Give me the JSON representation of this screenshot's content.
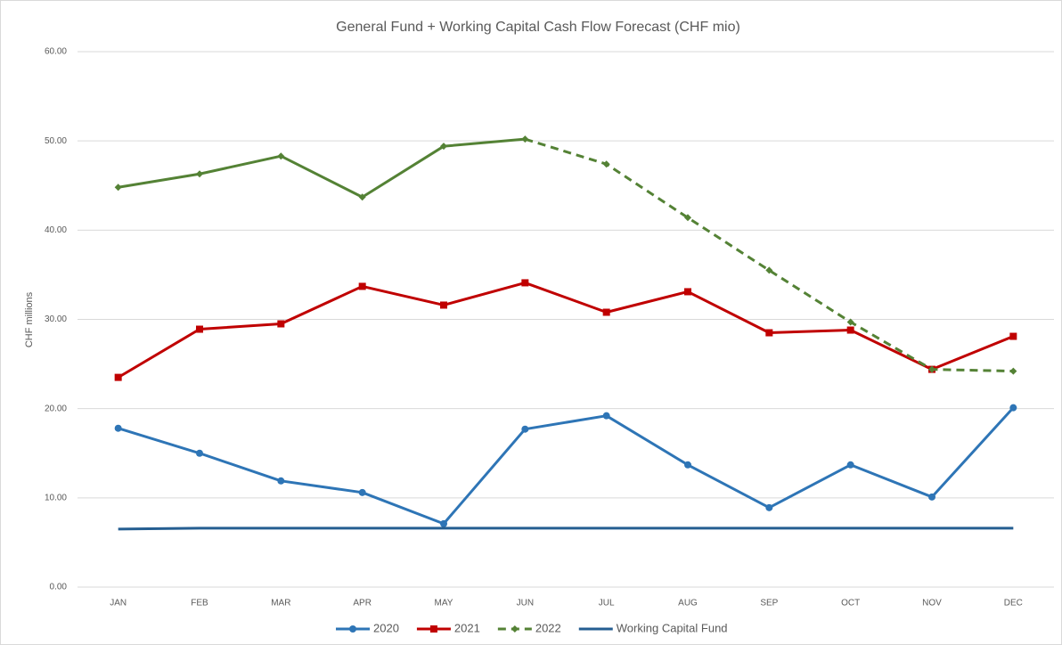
{
  "chart_data": {
    "type": "line",
    "title": "General Fund + Working Capital Cash Flow Forecast (CHF mio)",
    "y_label": "CHF millions",
    "categories": [
      "JAN",
      "FEB",
      "MAR",
      "APR",
      "MAY",
      "JUN",
      "JUL",
      "AUG",
      "SEP",
      "OCT",
      "NOV",
      "DEC"
    ],
    "series": [
      {
        "name": "2020",
        "color": "#2e75b6",
        "marker": "circle",
        "values": [
          17.8,
          15.0,
          11.9,
          10.6,
          7.1,
          17.7,
          19.2,
          13.7,
          8.9,
          13.7,
          10.1,
          20.1
        ]
      },
      {
        "name": "2021",
        "color": "#c00000",
        "marker": "square",
        "values": [
          23.5,
          28.9,
          29.5,
          33.7,
          31.6,
          34.1,
          30.8,
          33.1,
          28.5,
          28.8,
          24.4,
          28.1
        ]
      },
      {
        "name": "2022",
        "color": "#548235",
        "marker": "diamond",
        "dashed_from": "JUN",
        "values": [
          44.8,
          46.3,
          48.3,
          43.7,
          49.4,
          50.2,
          47.4,
          41.4,
          35.5,
          29.7,
          24.4,
          24.2
        ]
      },
      {
        "name": "Working Capital Fund",
        "color": "#255e91",
        "marker": "none",
        "values": [
          6.5,
          6.6,
          6.6,
          6.6,
          6.6,
          6.6,
          6.6,
          6.6,
          6.6,
          6.6,
          6.6,
          6.6
        ]
      }
    ],
    "ylim": [
      0,
      60
    ],
    "yticks": [
      {
        "value": 0,
        "label": "0.00"
      },
      {
        "value": 10,
        "label": "10.00"
      },
      {
        "value": 20,
        "label": "20.00"
      },
      {
        "value": 30,
        "label": "30.00"
      },
      {
        "value": 40,
        "label": "40.00"
      },
      {
        "value": 50,
        "label": "50.00"
      },
      {
        "value": 60,
        "label": "60.00"
      }
    ],
    "grid": true,
    "legend": "bottom"
  }
}
